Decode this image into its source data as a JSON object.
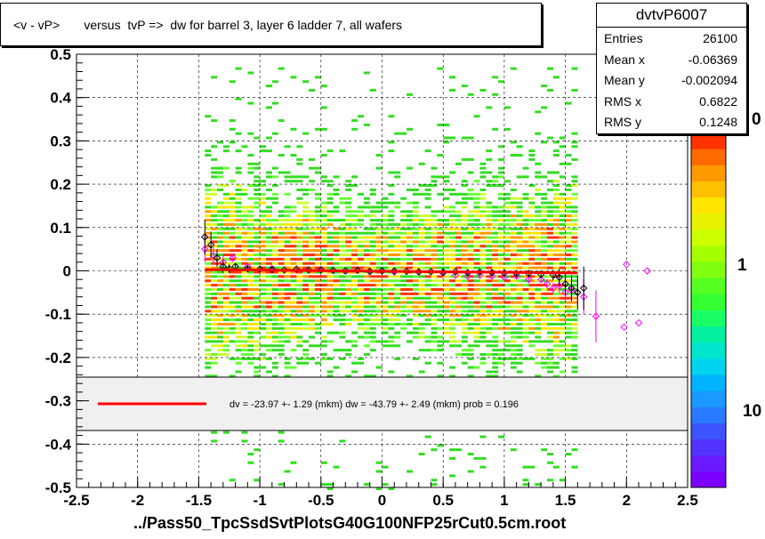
{
  "title": "<v - vP>       versus  tvP =>  dw for barrel 3, layer 6 ladder 7, all wafers",
  "stats": {
    "name": "dvtvP6007",
    "rows": [
      {
        "key": "Entries",
        "value": "26100"
      },
      {
        "key": "Mean x",
        "value": "-0.06369"
      },
      {
        "key": "Mean y",
        "value": "-0.002094"
      },
      {
        "key": "RMS x",
        "value": "0.6822"
      },
      {
        "key": "RMS y",
        "value": "0.1248"
      }
    ]
  },
  "xtitle": "../Pass50_TpcSsdSvtPlotsG40G100NFP25rCut0.5cm.root",
  "fit_text": "dv =  -23.97 +-  1.29 (mkm) dw =  -43.79 +-  2.49 (mkm) prob = 0.196",
  "colors": {
    "fit_line": "#ff0000",
    "profile_black": "#000000",
    "profile_magenta": "#ff00ff"
  },
  "chart_data": {
    "type": "heatmap",
    "xlim": [
      -2.5,
      2.5
    ],
    "ylim": [
      -0.5,
      0.5
    ],
    "xticks": [
      "-2.5",
      "-2",
      "-1.5",
      "-1",
      "-0.5",
      "0",
      "0.5",
      "1",
      "1.5",
      "2",
      "2.5"
    ],
    "yticks": [
      "-0.5",
      "-0.4",
      "-0.3",
      "-0.2",
      "-0.1",
      "0",
      "0.1",
      "0.2",
      "0.3",
      "0.4",
      "0.5"
    ],
    "grid": true,
    "colorbar_labels": [
      "0",
      "1",
      "10"
    ],
    "fit_line": {
      "x": [
        -1.45,
        1.6
      ],
      "y": [
        0.003,
        -0.005
      ]
    },
    "profile_black": {
      "x": [
        -1.45,
        -1.4,
        -1.35,
        -1.3,
        -1.25,
        -1.2,
        -1.1,
        -1.0,
        -0.9,
        -0.8,
        -0.7,
        -0.6,
        -0.5,
        -0.4,
        -0.3,
        -0.2,
        -0.1,
        0.0,
        0.1,
        0.2,
        0.3,
        0.4,
        0.5,
        0.6,
        0.7,
        0.8,
        0.9,
        1.0,
        1.1,
        1.2,
        1.3,
        1.4,
        1.45,
        1.5,
        1.55,
        1.6,
        1.65
      ],
      "y": [
        0.078,
        0.06,
        0.03,
        0.01,
        0.005,
        0.01,
        0.005,
        0.004,
        0.003,
        0.002,
        0.004,
        0.002,
        0.002,
        0.001,
        0.0,
        0.001,
        -0.001,
        0.0,
        0.0,
        -0.001,
        -0.002,
        -0.002,
        -0.003,
        -0.002,
        -0.004,
        -0.003,
        -0.004,
        -0.005,
        -0.006,
        -0.006,
        -0.008,
        -0.01,
        -0.015,
        -0.03,
        -0.04,
        -0.05,
        -0.04
      ],
      "err": [
        0.04,
        0.03,
        0.02,
        0.015,
        0.01,
        0.008,
        0.006,
        0.005,
        0.004,
        0.003,
        0.003,
        0.003,
        0.003,
        0.003,
        0.003,
        0.003,
        0.003,
        0.003,
        0.003,
        0.003,
        0.003,
        0.003,
        0.003,
        0.003,
        0.004,
        0.004,
        0.005,
        0.005,
        0.006,
        0.007,
        0.009,
        0.012,
        0.02,
        0.025,
        0.03,
        0.04,
        0.05
      ]
    },
    "profile_magenta": {
      "x": [
        -1.45,
        -1.38,
        -1.3,
        -1.22,
        -1.1,
        -0.9,
        -0.7,
        -0.5,
        -0.3,
        -0.1,
        0.1,
        0.3,
        0.5,
        0.6,
        0.7,
        0.8,
        0.9,
        1.0,
        1.1,
        1.2,
        1.3,
        1.35,
        1.4,
        1.45,
        1.5,
        1.55,
        1.6,
        1.65,
        1.75,
        1.98,
        2.0,
        2.1,
        2.17
      ],
      "y": [
        0.05,
        0.035,
        0.02,
        0.03,
        0.01,
        0.005,
        0.003,
        0.003,
        0.0,
        -0.002,
        -0.003,
        -0.003,
        -0.005,
        -0.01,
        -0.012,
        -0.01,
        -0.012,
        -0.015,
        -0.012,
        -0.02,
        -0.02,
        -0.03,
        -0.04,
        -0.035,
        -0.05,
        -0.045,
        -0.05,
        -0.06,
        -0.105,
        -0.13,
        0.015,
        -0.12,
        0.0
      ],
      "err": [
        0.03,
        0.02,
        0.015,
        0.01,
        0.006,
        0.004,
        0.003,
        0.003,
        0.003,
        0.003,
        0.003,
        0.003,
        0.003,
        0.004,
        0.004,
        0.005,
        0.005,
        0.005,
        0.006,
        0.007,
        0.008,
        0.01,
        0.012,
        0.015,
        0.02,
        0.025,
        0.03,
        0.04,
        0.06,
        0.0,
        0.0,
        0.0,
        0.0
      ]
    }
  }
}
